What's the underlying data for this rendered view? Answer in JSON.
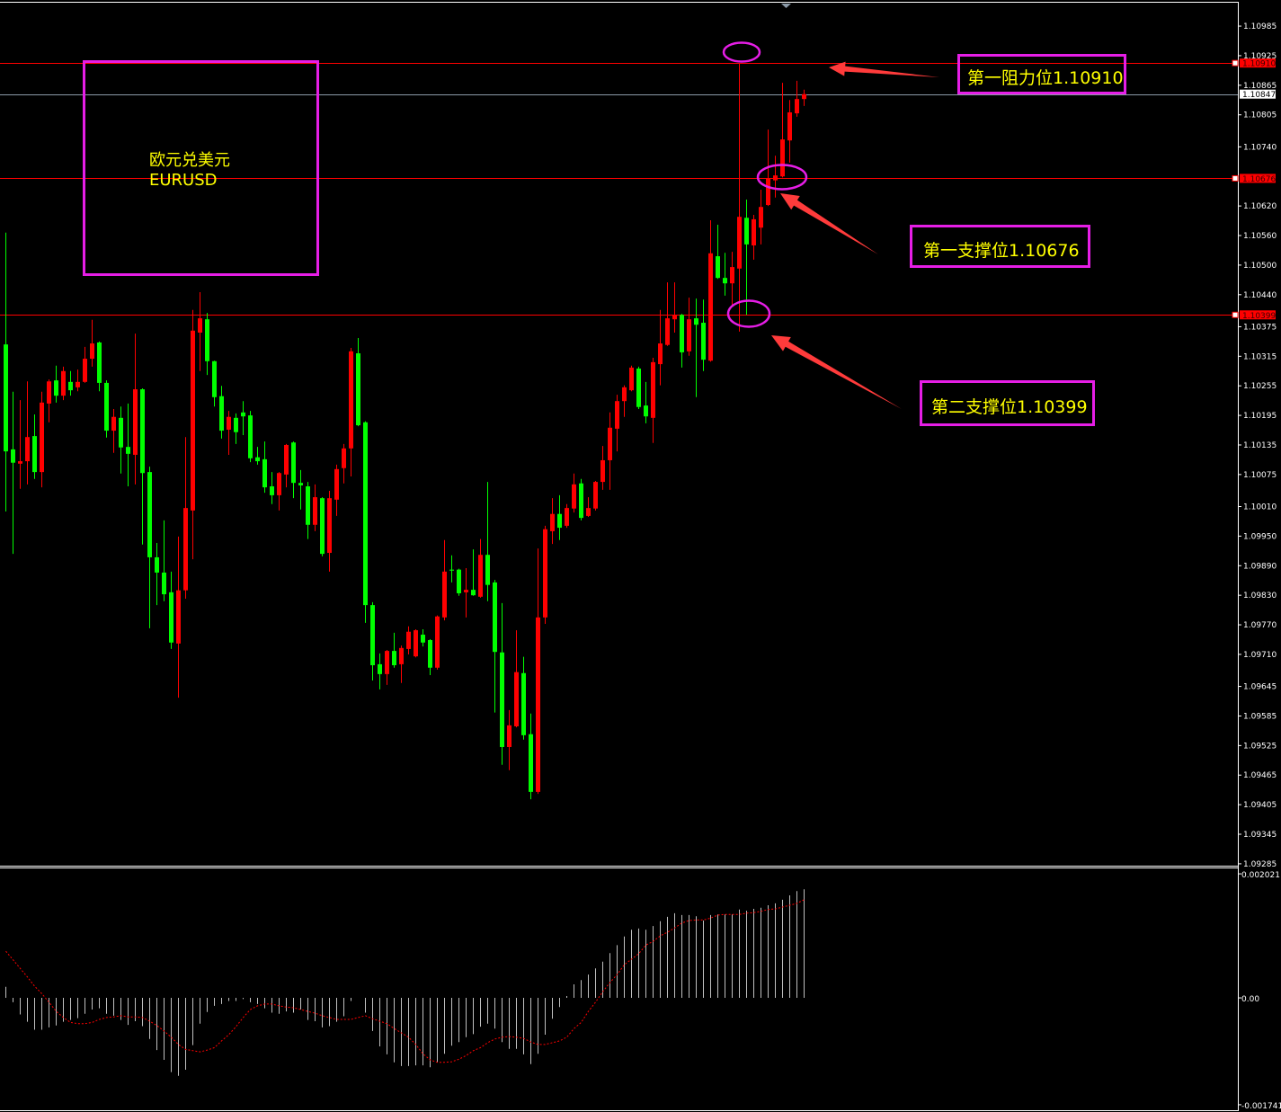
{
  "chart_data": {
    "type": "candlestick",
    "symbol_label": "欧元兑美元",
    "symbol_code": "EURUSD",
    "ylim": [
      1.09283,
      1.11038
    ],
    "y_ticks": [
      "1.10985",
      "1.10925",
      "1.10865",
      "1.10805",
      "1.10740",
      "1.10620",
      "1.10560",
      "1.10500",
      "1.10440",
      "1.10375",
      "1.10315",
      "1.10255",
      "1.10195",
      "1.10135",
      "1.10075",
      "1.10010",
      "1.09950",
      "1.09890",
      "1.09830",
      "1.09770",
      "1.09710",
      "1.09645",
      "1.09585",
      "1.09525",
      "1.09465",
      "1.09405",
      "1.09345",
      "1.09285"
    ],
    "colors": {
      "up": "#ff0000",
      "down": "#00ff00",
      "background": "#000000",
      "annotation_box": "#e61ee6",
      "annotation_text": "#ffff00",
      "arrow": "#ff3b3b",
      "macd_histogram": "#c0c0c0",
      "macd_signal": "#ff0000"
    },
    "ohlc_columns": [
      "open",
      "high",
      "low",
      "close"
    ],
    "candles": [
      [
        1.10339,
        1.10566,
        1.1,
        1.10122
      ],
      [
        1.10126,
        1.10243,
        1.09914,
        1.10099
      ],
      [
        1.10097,
        1.10226,
        1.10046,
        1.10102
      ],
      [
        1.10102,
        1.10264,
        1.10055,
        1.10151
      ],
      [
        1.10153,
        1.10197,
        1.10066,
        1.1008
      ],
      [
        1.1008,
        1.10243,
        1.10049,
        1.10221
      ],
      [
        1.10219,
        1.10268,
        1.10181,
        1.10264
      ],
      [
        1.10266,
        1.10296,
        1.10221,
        1.10235
      ],
      [
        1.10235,
        1.10294,
        1.10226,
        1.10285
      ],
      [
        1.10263,
        1.10285,
        1.10235,
        1.10246
      ],
      [
        1.10252,
        1.10288,
        1.10244,
        1.10263
      ],
      [
        1.10263,
        1.10334,
        1.10261,
        1.1031
      ],
      [
        1.1031,
        1.10389,
        1.10294,
        1.10341
      ],
      [
        1.10343,
        1.10345,
        1.10244,
        1.10261
      ],
      [
        1.10261,
        1.10266,
        1.1015,
        1.10164
      ],
      [
        1.10164,
        1.10208,
        1.10119,
        1.10192
      ],
      [
        1.1019,
        1.10213,
        1.10077,
        1.1013
      ],
      [
        1.10131,
        1.10219,
        1.10051,
        1.10117
      ],
      [
        1.10115,
        1.10361,
        1.10055,
        1.10248
      ],
      [
        1.10248,
        1.1025,
        1.09933,
        1.10078
      ],
      [
        1.1008,
        1.10091,
        1.09763,
        1.09907
      ],
      [
        1.09907,
        1.09936,
        1.0981,
        1.09876
      ],
      [
        1.09876,
        1.09982,
        1.09818,
        1.09832
      ],
      [
        1.09836,
        1.09878,
        1.09721,
        1.09734
      ],
      [
        1.09732,
        1.09949,
        1.09622,
        1.0984
      ],
      [
        1.0984,
        1.10151,
        1.09823,
        1.10007
      ],
      [
        1.10002,
        1.10409,
        1.09903,
        1.10367
      ],
      [
        1.10363,
        1.10445,
        1.10285,
        1.10392
      ],
      [
        1.1039,
        1.10403,
        1.10277,
        1.10305
      ],
      [
        1.10305,
        1.10306,
        1.10213,
        1.10232
      ],
      [
        1.10234,
        1.10255,
        1.10148,
        1.10164
      ],
      [
        1.10166,
        1.10204,
        1.10115,
        1.10192
      ],
      [
        1.1019,
        1.10199,
        1.10137,
        1.10161
      ],
      [
        1.10201,
        1.10224,
        1.10155,
        1.10193
      ],
      [
        1.10195,
        1.10204,
        1.101,
        1.10108
      ],
      [
        1.1011,
        1.10131,
        1.10095,
        1.10102
      ],
      [
        1.10106,
        1.10142,
        1.10038,
        1.10049
      ],
      [
        1.10051,
        1.1008,
        1.10015,
        1.10033
      ],
      [
        1.10033,
        1.1008,
        1.10002,
        1.10078
      ],
      [
        1.10075,
        1.10137,
        1.10049,
        1.10135
      ],
      [
        1.1014,
        1.10142,
        1.10027,
        1.10058
      ],
      [
        1.10058,
        1.10084,
        1.10004,
        1.10053
      ],
      [
        1.10051,
        1.1006,
        1.09944,
        1.09973
      ],
      [
        1.09973,
        1.10055,
        1.0996,
        1.10029
      ],
      [
        1.10027,
        1.10029,
        1.09909,
        1.09914
      ],
      [
        1.09916,
        1.10042,
        1.09878,
        1.10027
      ],
      [
        1.10024,
        1.10095,
        1.09991,
        1.10086
      ],
      [
        1.10088,
        1.10137,
        1.10057,
        1.10128
      ],
      [
        1.10128,
        1.10332,
        1.10071,
        1.10325
      ],
      [
        1.10321,
        1.10352,
        1.10173,
        1.10175
      ],
      [
        1.10181,
        1.10183,
        1.09774,
        1.0981
      ],
      [
        1.0981,
        1.09816,
        1.09657,
        1.09688
      ],
      [
        1.0969,
        1.09712,
        1.09639,
        1.0967
      ],
      [
        1.0967,
        1.09719,
        1.09648,
        1.09717
      ],
      [
        1.09717,
        1.09754,
        1.09683,
        1.09688
      ],
      [
        1.0969,
        1.09728,
        1.09652,
        1.09723
      ],
      [
        1.09721,
        1.09767,
        1.0971,
        1.09756
      ],
      [
        1.09706,
        1.09761,
        1.09704,
        1.09759
      ],
      [
        1.0975,
        1.09761,
        1.09726,
        1.09734
      ],
      [
        1.09739,
        1.09741,
        1.09668,
        1.09683
      ],
      [
        1.09683,
        1.09789,
        1.09679,
        1.09787
      ],
      [
        1.09785,
        1.09942,
        1.09779,
        1.09878
      ],
      [
        1.09882,
        1.09911,
        1.09856,
        1.0988
      ],
      [
        1.09882,
        1.09884,
        1.09829,
        1.09834
      ],
      [
        1.09836,
        1.09885,
        1.09785,
        1.09841
      ],
      [
        1.09841,
        1.09923,
        1.09829,
        1.0983
      ],
      [
        1.09827,
        1.09944,
        1.09825,
        1.09912
      ],
      [
        1.09912,
        1.1006,
        1.09818,
        1.09851
      ],
      [
        1.09856,
        1.09861,
        1.09592,
        1.09715
      ],
      [
        1.09714,
        1.09814,
        1.09486,
        1.09522
      ],
      [
        1.09522,
        1.09597,
        1.09475,
        1.09566
      ],
      [
        1.09564,
        1.09759,
        1.09562,
        1.09674
      ],
      [
        1.09672,
        1.09705,
        1.09537,
        1.09546
      ],
      [
        1.09548,
        1.0959,
        1.09416,
        1.09431
      ],
      [
        1.09431,
        1.09925,
        1.09427,
        1.09785
      ],
      [
        1.09785,
        1.09971,
        1.09772,
        1.09964
      ],
      [
        1.0996,
        1.10027,
        1.09934,
        1.09995
      ],
      [
        1.09995,
        1.10033,
        1.09942,
        1.09967
      ],
      [
        1.09971,
        1.10015,
        1.09967,
        1.10007
      ],
      [
        1.10006,
        1.10077,
        1.09998,
        1.10055
      ],
      [
        1.10057,
        1.10066,
        1.09982,
        1.09987
      ],
      [
        1.09991,
        1.10029,
        1.09989,
        1.10007
      ],
      [
        1.10006,
        1.10062,
        1.10002,
        1.1006
      ],
      [
        1.1006,
        1.10133,
        1.10044,
        1.10104
      ],
      [
        1.10104,
        1.10201,
        1.10044,
        1.1017
      ],
      [
        1.10168,
        1.10237,
        1.10122,
        1.10224
      ],
      [
        1.10224,
        1.10256,
        1.10192,
        1.10252
      ],
      [
        1.10246,
        1.10296,
        1.10244,
        1.10292
      ],
      [
        1.1029,
        1.10294,
        1.10208,
        1.10212
      ],
      [
        1.10215,
        1.10263,
        1.10179,
        1.10193
      ],
      [
        1.1019,
        1.10312,
        1.10139,
        1.10303
      ],
      [
        1.10299,
        1.10409,
        1.10256,
        1.10341
      ],
      [
        1.10338,
        1.10465,
        1.10336,
        1.10392
      ],
      [
        1.1039,
        1.10465,
        1.10363,
        1.10399
      ],
      [
        1.10399,
        1.10401,
        1.10292,
        1.10323
      ],
      [
        1.10325,
        1.10434,
        1.10316,
        1.1039
      ],
      [
        1.10392,
        1.10432,
        1.10232,
        1.10379
      ],
      [
        1.10383,
        1.1043,
        1.10285,
        1.10308
      ],
      [
        1.10306,
        1.10591,
        1.10304,
        1.10524
      ],
      [
        1.10518,
        1.10582,
        1.10472,
        1.10474
      ],
      [
        1.10474,
        1.10525,
        1.10438,
        1.10463
      ],
      [
        1.10463,
        1.10527,
        1.10418,
        1.10496
      ],
      [
        1.10493,
        1.1091,
        1.10365,
        1.10598
      ],
      [
        1.10596,
        1.10633,
        1.10399,
        1.10542
      ],
      [
        1.1054,
        1.10602,
        1.10511,
        1.10593
      ],
      [
        1.10576,
        1.10653,
        1.10542,
        1.10618
      ],
      [
        1.10622,
        1.10775,
        1.1062,
        1.10675
      ],
      [
        1.10672,
        1.10722,
        1.10637,
        1.10682
      ],
      [
        1.1068,
        1.1087,
        1.10678,
        1.10755
      ],
      [
        1.10753,
        1.10835,
        1.10708,
        1.1081
      ],
      [
        1.10808,
        1.10874,
        1.10801,
        1.10837
      ],
      [
        1.10837,
        1.10856,
        1.10823,
        1.10847
      ]
    ],
    "levels": [
      {
        "name": "resistance-1",
        "price": 1.1091,
        "label": "1.10910",
        "color": "#ff0000"
      },
      {
        "name": "support-1",
        "price": 1.10676,
        "label": "1.10676",
        "color": "#ff0000"
      },
      {
        "name": "support-2",
        "price": 1.10399,
        "label": "1.10399",
        "color": "#ff0000"
      }
    ],
    "bid": {
      "price": 1.10847,
      "label": "1.10847",
      "color": "#8c9aa8"
    },
    "annotations": {
      "resistance_1": "第一阻力位1.10910",
      "support_1": "第一支撑位1.10676",
      "support_2": "第二支撑位1.10399"
    },
    "macd": {
      "ylim": [
        -0.00183,
        0.00211
      ],
      "y_ticks": [
        "0.002021",
        "0.00",
        "-0.001741"
      ],
      "y_tick_values": [
        0.002021,
        0,
        -0.001741
      ],
      "histogram": [
        0.00018,
        -7e-05,
        -0.00027,
        -0.00039,
        -0.00052,
        -0.00052,
        -0.00048,
        -0.00045,
        -0.00039,
        -0.00036,
        -0.00033,
        -0.00026,
        -0.00019,
        -0.00017,
        -0.00026,
        -0.00029,
        -0.00036,
        -0.00044,
        -0.00038,
        -0.00046,
        -0.00067,
        -0.00085,
        -0.00101,
        -0.00121,
        -0.00127,
        -0.00117,
        -0.00077,
        -0.00042,
        -0.00023,
        -0.00013,
        -0.0001,
        -5e-05,
        -5e-05,
        -2e-05,
        -7e-05,
        -0.0001,
        -0.00017,
        -0.00024,
        -0.00026,
        -0.00022,
        -0.00024,
        -0.00019,
        -0.00036,
        -0.00038,
        -0.00048,
        -0.00046,
        -0.00039,
        -0.0003,
        -5e-05,
        0,
        -0.00024,
        -0.00054,
        -0.00079,
        -0.00092,
        -0.00105,
        -0.00111,
        -0.00111,
        -0.0011,
        -0.0011,
        -0.00113,
        -0.00105,
        -0.00091,
        -0.00078,
        -0.00072,
        -0.00064,
        -0.00059,
        -0.00047,
        -0.00042,
        -0.0005,
        -0.00072,
        -0.00083,
        -0.00083,
        -0.00092,
        -0.00108,
        -0.00091,
        -0.0006,
        -0.00034,
        -0.00015,
        3e-05,
        0.00022,
        0.00029,
        0.00038,
        0.00048,
        0.00059,
        0.00073,
        0.00086,
        0.001,
        0.00111,
        0.00113,
        0.00111,
        0.00117,
        0.00125,
        0.00132,
        0.00138,
        0.00135,
        0.00135,
        0.00133,
        0.00126,
        0.00135,
        0.00136,
        0.00136,
        0.00136,
        0.00144,
        0.00142,
        0.00145,
        0.00147,
        0.00151,
        0.00154,
        0.0016,
        0.00167,
        0.00174,
        0.00177
      ],
      "signal": [
        0.00076,
        0.00062,
        0.00048,
        0.00034,
        0.00019,
        7e-05,
        -7e-05,
        -0.00022,
        -0.00032,
        -0.0004,
        -0.00042,
        -0.00042,
        -0.0004,
        -0.00035,
        -0.00032,
        -0.00031,
        -0.00029,
        -0.00031,
        -0.00031,
        -0.00032,
        -0.00038,
        -0.00045,
        -0.00054,
        -0.00064,
        -0.00076,
        -0.00084,
        -0.00086,
        -0.00088,
        -0.00085,
        -0.00081,
        -0.0007,
        -0.0006,
        -0.00047,
        -0.00032,
        -0.00019,
        -0.00013,
        -0.0001,
        -0.0001,
        -0.00013,
        -0.00015,
        -0.00016,
        -0.00019,
        -0.00022,
        -0.00025,
        -0.00029,
        -0.00032,
        -0.00035,
        -0.00035,
        -0.00035,
        -0.00032,
        -0.00029,
        -0.00034,
        -0.00038,
        -0.00042,
        -0.0005,
        -0.00057,
        -0.00064,
        -0.00076,
        -0.00091,
        -0.00101,
        -0.00105,
        -0.00105,
        -0.00104,
        -0.001,
        -0.00094,
        -0.00086,
        -0.00081,
        -0.00073,
        -0.00067,
        -0.00064,
        -0.00063,
        -0.00064,
        -0.00066,
        -0.00072,
        -0.00076,
        -0.00076,
        -0.00073,
        -0.0007,
        -0.00064,
        -0.0005,
        -0.0004,
        -0.00022,
        -7e-05,
        0.0001,
        0.00025,
        0.00038,
        0.00054,
        0.00063,
        0.00072,
        0.00086,
        0.00092,
        0.00101,
        0.00107,
        0.00114,
        0.00122,
        0.00126,
        0.00127,
        0.00127,
        0.0013,
        0.00135,
        0.00136,
        0.00136,
        0.00136,
        0.00138,
        0.00139,
        0.00141,
        0.00144,
        0.00145,
        0.00148,
        0.00151,
        0.00154,
        0.0016
      ]
    }
  }
}
